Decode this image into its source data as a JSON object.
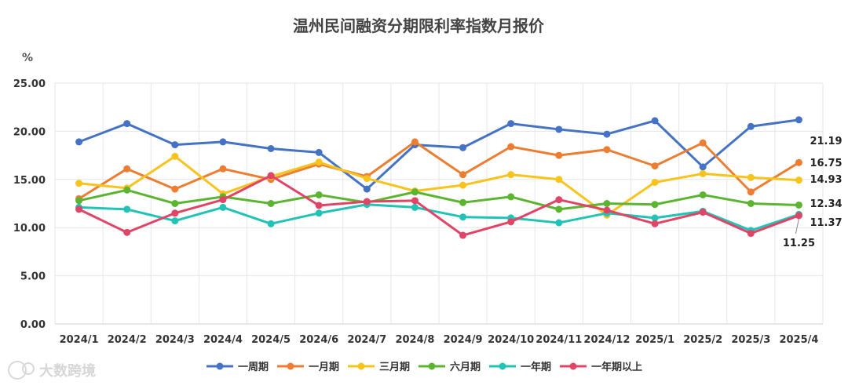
{
  "chart_data": {
    "type": "line",
    "title": "温州民间融资分期限利率指数月报价",
    "unit_label": "%",
    "categories": [
      "2024/1",
      "2024/2",
      "2024/3",
      "2024/4",
      "2024/5",
      "2024/6",
      "2024/7",
      "2024/8",
      "2024/9",
      "2024/10",
      "2024/11",
      "2024/12",
      "2025/1",
      "2025/2",
      "2025/3",
      "2025/4"
    ],
    "y_ticks": [
      "0.00",
      "5.00",
      "10.00",
      "15.00",
      "20.00",
      "25.00"
    ],
    "ylim": [
      0,
      25
    ],
    "grid": true,
    "legend_position": "bottom",
    "series": [
      {
        "name": "一周期",
        "color": "#4472c4",
        "values": [
          18.9,
          20.8,
          18.6,
          18.9,
          18.2,
          17.8,
          14.0,
          18.6,
          18.3,
          20.8,
          20.2,
          19.7,
          21.1,
          16.3,
          20.5,
          21.19
        ],
        "end_label": "21.19"
      },
      {
        "name": "一月期",
        "color": "#ed7d31",
        "values": [
          13.0,
          16.1,
          14.0,
          16.1,
          15.0,
          16.6,
          15.3,
          18.9,
          15.5,
          18.4,
          17.5,
          18.1,
          16.4,
          18.8,
          13.7,
          16.75
        ],
        "end_label": "16.75"
      },
      {
        "name": "三月期",
        "color": "#f7c31c",
        "values": [
          14.6,
          14.1,
          17.4,
          13.5,
          15.3,
          16.8,
          15.1,
          13.8,
          14.4,
          15.5,
          15.0,
          11.3,
          14.7,
          15.6,
          15.2,
          14.93
        ],
        "end_label": "14.93"
      },
      {
        "name": "六月期",
        "color": "#5cb531",
        "values": [
          12.8,
          13.9,
          12.5,
          13.2,
          12.5,
          13.4,
          12.6,
          13.7,
          12.6,
          13.2,
          11.9,
          12.5,
          12.4,
          13.4,
          12.5,
          12.34
        ],
        "end_label": "12.34"
      },
      {
        "name": "一年期",
        "color": "#22c3b7",
        "values": [
          12.1,
          11.9,
          10.7,
          12.1,
          10.4,
          11.5,
          12.4,
          12.1,
          11.1,
          11.0,
          10.5,
          11.5,
          11.0,
          11.7,
          9.7,
          11.37
        ],
        "end_label": "11.37"
      },
      {
        "name": "一年期以上",
        "color": "#e04466",
        "values": [
          11.9,
          9.5,
          11.5,
          12.9,
          15.4,
          12.3,
          12.7,
          12.8,
          9.2,
          10.6,
          12.9,
          11.8,
          10.4,
          11.6,
          9.4,
          11.25
        ],
        "end_label": "11.25"
      }
    ]
  },
  "watermark": {
    "text": "大数跨境",
    "icon": "fox-logo-icon"
  }
}
